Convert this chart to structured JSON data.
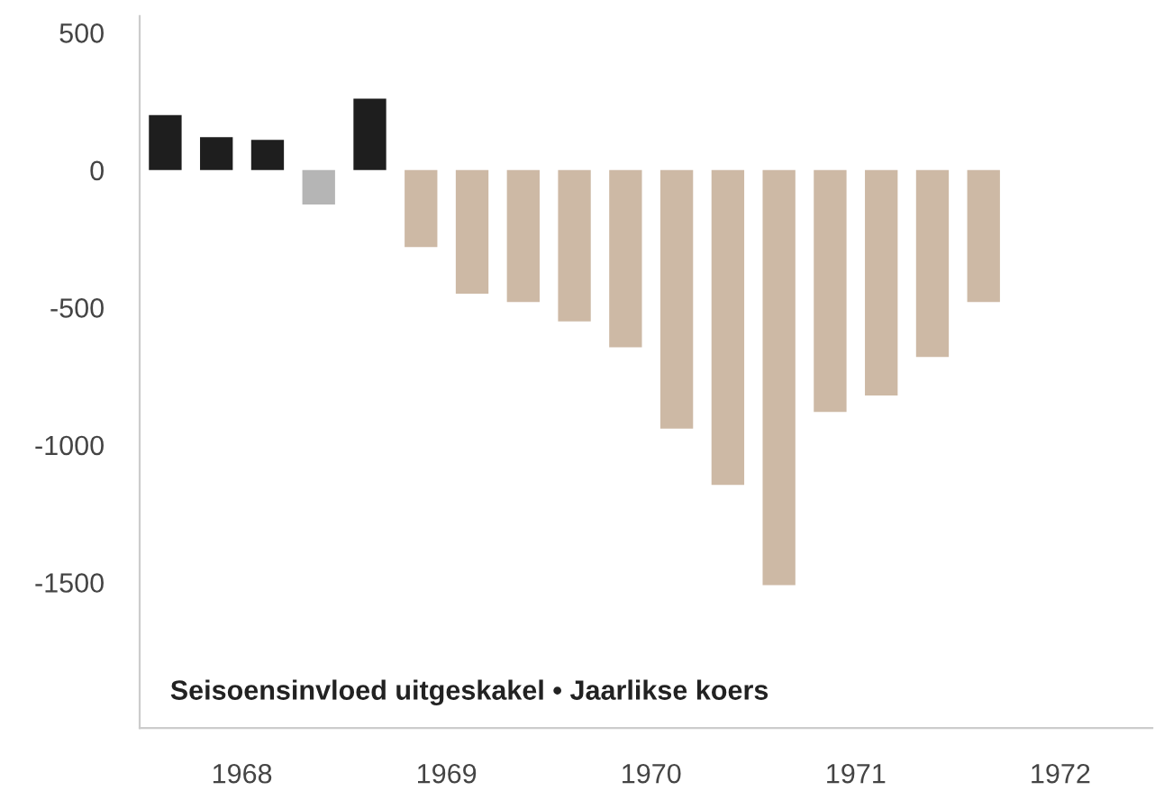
{
  "chart_data": {
    "type": "bar",
    "title": "Seisoensinvloed uitgeskakel • Jaarlikse koers",
    "x": [
      1967.625,
      1967.875,
      1968.125,
      1968.375,
      1968.625,
      1968.875,
      1969.125,
      1969.375,
      1969.625,
      1969.875,
      1970.125,
      1970.375,
      1970.625,
      1970.875,
      1971.125,
      1971.375,
      1971.625
    ],
    "values": [
      200,
      120,
      110,
      -125,
      260,
      -280,
      -450,
      -480,
      -550,
      -645,
      -940,
      -1145,
      -1510,
      -880,
      -820,
      -680,
      -480
    ],
    "colors": [
      "#1e1e1e",
      "#1e1e1e",
      "#1e1e1e",
      "#b5b5b5",
      "#1e1e1e",
      "#cdb9a5",
      "#cdb9a5",
      "#cdb9a5",
      "#cdb9a5",
      "#cdb9a5",
      "#cdb9a5",
      "#cdb9a5",
      "#cdb9a5",
      "#cdb9a5",
      "#cdb9a5",
      "#cdb9a5",
      "#cdb9a5"
    ],
    "xlim": [
      1967.5,
      1972.45
    ],
    "xticks": [
      1968,
      1969,
      1970,
      1971,
      1972
    ],
    "ylim": [
      -2030,
      560
    ],
    "yticks": [
      500,
      0,
      -500,
      -1000,
      -1500
    ],
    "grid": false,
    "legend": false
  }
}
